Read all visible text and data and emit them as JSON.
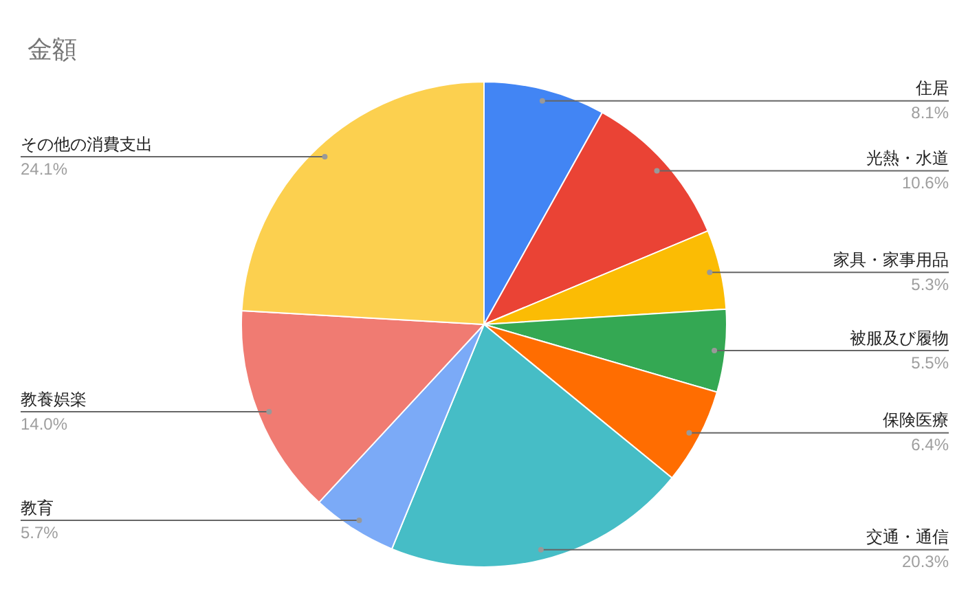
{
  "chart_data": {
    "type": "pie",
    "title": "金額",
    "categories": [
      "住居",
      "光熱・水道",
      "家具・家事用品",
      "被服及び履物",
      "保険医療",
      "交通・通信",
      "教育",
      "教養娯楽",
      "その他の消費支出"
    ],
    "values": [
      8.1,
      10.6,
      5.3,
      5.5,
      6.4,
      20.3,
      5.7,
      14.0,
      24.1
    ],
    "value_labels": [
      "8.1%",
      "10.6%",
      "5.3%",
      "5.5%",
      "6.4%",
      "20.3%",
      "5.7%",
      "14.0%",
      "24.1%"
    ],
    "colors": [
      "#4285f4",
      "#ea4335",
      "#fbbc04",
      "#34a853",
      "#ff6d01",
      "#46bdc6",
      "#7baaf7",
      "#f07b72",
      "#fcd04f"
    ],
    "legend": false
  }
}
